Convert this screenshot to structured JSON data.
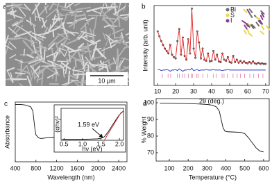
{
  "image_panel": {
    "panel_label": "a",
    "scale_bar": "10 μm"
  },
  "chart_data": [
    {
      "type": "line",
      "panel_label": "b",
      "xlabel": "2θ (deg.)",
      "ylabel": "Intensity (arb. unit)",
      "xlim": [
        8,
        72
      ],
      "ylim": [
        -0.3,
        1
      ],
      "xticks": [
        10,
        20,
        30,
        40,
        50,
        60,
        70
      ],
      "x": [
        10,
        11,
        12,
        13,
        14,
        15,
        16,
        17,
        18,
        19,
        20,
        21,
        22,
        23,
        24,
        25,
        26,
        27,
        28,
        29,
        30,
        31,
        32,
        33,
        34,
        35,
        36,
        37,
        38,
        39,
        40,
        41,
        42,
        43,
        44,
        45,
        46,
        47,
        48,
        49,
        50,
        51,
        52,
        53,
        54,
        55,
        56,
        57,
        58,
        59,
        60,
        61,
        62,
        63,
        64,
        65,
        66,
        67,
        68,
        69,
        70
      ],
      "series": [
        {
          "color": "#111111",
          "style": "points",
          "values": [
            0.58,
            0.5,
            0.42,
            0.36,
            0.3,
            0.26,
            0.22,
            0.36,
            0.2,
            0.16,
            0.14,
            0.42,
            0.62,
            0.2,
            0.48,
            0.18,
            0.12,
            0.45,
            0.22,
            0.95,
            0.3,
            0.15,
            0.58,
            0.4,
            0.14,
            0.3,
            0.12,
            0.1,
            0.22,
            0.09,
            0.1,
            0.26,
            0.12,
            0.2,
            0.09,
            0.08,
            0.22,
            0.12,
            0.1,
            0.16,
            0.08,
            0.07,
            0.18,
            0.08,
            0.12,
            0.07,
            0.1,
            0.07,
            0.09,
            0.07,
            0.06,
            0.08,
            0.06,
            0.09,
            0.06,
            0.05,
            0.07,
            0.05,
            0.06,
            0.05,
            0.05
          ]
        },
        {
          "color": "#e02020",
          "style": "line",
          "values": [
            0.58,
            0.5,
            0.42,
            0.36,
            0.3,
            0.26,
            0.22,
            0.36,
            0.2,
            0.16,
            0.14,
            0.42,
            0.62,
            0.2,
            0.48,
            0.18,
            0.12,
            0.45,
            0.22,
            0.95,
            0.3,
            0.15,
            0.58,
            0.4,
            0.14,
            0.3,
            0.12,
            0.1,
            0.22,
            0.09,
            0.1,
            0.26,
            0.12,
            0.2,
            0.09,
            0.08,
            0.22,
            0.12,
            0.1,
            0.16,
            0.08,
            0.07,
            0.18,
            0.08,
            0.12,
            0.07,
            0.1,
            0.07,
            0.09,
            0.07,
            0.06,
            0.08,
            0.06,
            0.09,
            0.06,
            0.05,
            0.07,
            0.05,
            0.06,
            0.05,
            0.05
          ]
        },
        {
          "color": "#2233cc",
          "style": "line",
          "values": [
            -0.05,
            -0.04,
            -0.06,
            -0.05,
            -0.05,
            -0.04,
            -0.05,
            -0.07,
            -0.05,
            -0.05,
            -0.04,
            -0.06,
            -0.03,
            -0.05,
            -0.07,
            -0.05,
            -0.05,
            -0.04,
            -0.05,
            -0.02,
            -0.06,
            -0.05,
            -0.04,
            -0.06,
            -0.05,
            -0.05,
            -0.05,
            -0.04,
            -0.05,
            -0.05,
            -0.05,
            -0.04,
            -0.05,
            -0.05,
            -0.05,
            -0.05,
            -0.06,
            -0.05,
            -0.05,
            -0.04,
            -0.05,
            -0.05,
            -0.05,
            -0.05,
            -0.05,
            -0.05,
            -0.05,
            -0.05,
            -0.05,
            -0.05,
            -0.05,
            -0.05,
            -0.05,
            -0.05,
            -0.05,
            -0.05,
            -0.05,
            -0.05,
            -0.05,
            -0.05,
            -0.05
          ]
        }
      ],
      "bragg_color": "#e07aa0",
      "bragg_positions": [
        12.6,
        15.8,
        17.2,
        20.9,
        22.1,
        23.9,
        25.2,
        27.1,
        28.6,
        29.3,
        31.8,
        32.6,
        35.1,
        37.8,
        40.9,
        42.5,
        45.8,
        46.9,
        48.7,
        51.9,
        54.2,
        56.0,
        58.3,
        61.2,
        63.4,
        66.0,
        68.5
      ],
      "structure_legend": [
        {
          "label": "Bi",
          "color": "#6b6b6b"
        },
        {
          "label": "S",
          "color": "#e8d84a"
        },
        {
          "label": "I",
          "color": "#8b3a8b"
        }
      ]
    },
    {
      "type": "line",
      "panel_label": "c",
      "xlabel": "Wavelength (nm)",
      "ylabel": "Absorbance",
      "xlim": [
        400,
        2560
      ],
      "ylim": [
        0,
        1
      ],
      "xticks": [
        400,
        800,
        1200,
        1600,
        2000,
        2400
      ],
      "x": [
        400,
        500,
        600,
        700,
        740,
        760,
        780,
        800,
        850,
        900,
        1000,
        1200,
        1300,
        1350,
        1380,
        1500,
        1800,
        2000,
        2200,
        2400,
        2500
      ],
      "series": [
        {
          "color": "#111111",
          "style": "line",
          "values": [
            0.96,
            0.96,
            0.95,
            0.92,
            0.85,
            0.7,
            0.55,
            0.45,
            0.4,
            0.39,
            0.4,
            0.41,
            0.41,
            0.36,
            0.4,
            0.39,
            0.38,
            0.37,
            0.37,
            0.36,
            0.36
          ]
        }
      ]
    },
    {
      "type": "line",
      "xlabel": "hν (eV)",
      "ylabel": "(αhν)²",
      "annotation": "1.59 eV",
      "xlim": [
        0.42,
        2.11
      ],
      "ylim": [
        0,
        1.1
      ],
      "xticks": [
        {
          "value": 0.5,
          "label": "0.5"
        },
        {
          "value": 1,
          "label": "1.0"
        },
        {
          "value": 1.5,
          "label": "1.5"
        },
        {
          "value": 2,
          "label": "2.0"
        }
      ],
      "x": [
        0.45,
        0.6,
        0.9,
        1.2,
        1.4,
        1.5,
        1.55,
        1.6,
        1.7,
        1.8,
        1.9,
        2.0,
        2.1
      ],
      "series": [
        {
          "color": "#111111",
          "style": "line",
          "values": [
            0.03,
            0.03,
            0.03,
            0.04,
            0.05,
            0.07,
            0.09,
            0.13,
            0.3,
            0.5,
            0.7,
            0.88,
            1.0
          ]
        },
        {
          "color": "#e02020",
          "style": "line",
          "x": [
            1.59,
            2.05
          ],
          "values": [
            0,
            0.97
          ]
        }
      ]
    },
    {
      "type": "line",
      "panel_label": "d",
      "xlabel": "Temperature (°C)",
      "ylabel": "% Weight",
      "xlim": [
        30,
        630
      ],
      "ylim": [
        65,
        102.5
      ],
      "xticks": [
        100,
        200,
        300,
        400,
        500,
        600
      ],
      "yticks": [
        70,
        80,
        90,
        100
      ],
      "x": [
        50,
        100,
        150,
        200,
        250,
        300,
        330,
        350,
        365,
        375,
        385,
        395,
        410,
        450,
        480,
        500,
        520,
        540,
        560,
        580,
        600
      ],
      "series": [
        {
          "color": "#111111",
          "style": "line",
          "values": [
            99.8,
            99.7,
            99.6,
            99.5,
            99.3,
            99,
            98.5,
            97.5,
            95,
            90,
            85,
            83,
            82.6,
            82.4,
            82.2,
            81.5,
            79,
            76,
            73,
            71,
            70.5
          ]
        }
      ]
    }
  ]
}
